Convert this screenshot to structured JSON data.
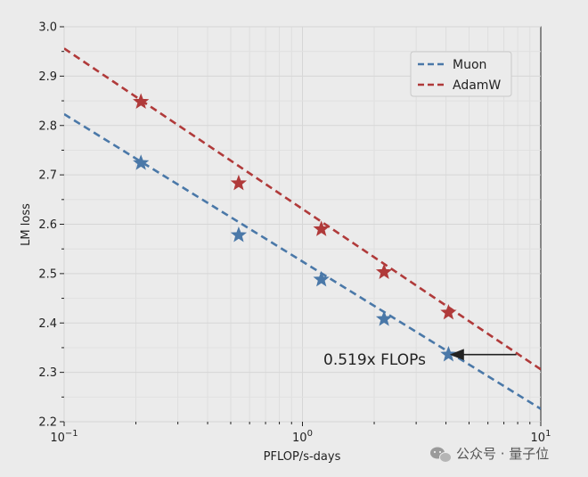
{
  "chart_data": {
    "type": "scatter",
    "xscale": "log",
    "xlabel": "PFLOP/s-days",
    "ylabel": "LM loss",
    "xlim": [
      0.1,
      10
    ],
    "ylim": [
      2.2,
      3.0
    ],
    "x_ticks": [
      {
        "value": 0.1,
        "base": "10",
        "exp": "−1"
      },
      {
        "value": 1,
        "base": "10",
        "exp": "0"
      },
      {
        "value": 10,
        "base": "10",
        "exp": "1"
      }
    ],
    "y_ticks": [
      "2.2",
      "2.3",
      "2.4",
      "2.5",
      "2.6",
      "2.7",
      "2.8",
      "2.9",
      "3.0"
    ],
    "grid": true,
    "legend_position": "top-right",
    "series": [
      {
        "name": "Muon",
        "color": "#4a78a8",
        "marker": "star",
        "points": [
          {
            "x": 0.21,
            "y": 2.724
          },
          {
            "x": 0.54,
            "y": 2.578
          },
          {
            "x": 1.2,
            "y": 2.488
          },
          {
            "x": 2.2,
            "y": 2.408
          },
          {
            "x": 4.1,
            "y": 2.336
          }
        ],
        "fit_line": {
          "x": [
            0.1,
            10
          ],
          "y": [
            2.823,
            2.226
          ]
        }
      },
      {
        "name": "AdamW",
        "color": "#b03a3a",
        "marker": "star",
        "points": [
          {
            "x": 0.21,
            "y": 2.848
          },
          {
            "x": 0.54,
            "y": 2.683
          },
          {
            "x": 1.2,
            "y": 2.59
          },
          {
            "x": 2.2,
            "y": 2.503
          },
          {
            "x": 4.1,
            "y": 2.421
          }
        ],
        "fit_line": {
          "x": [
            0.1,
            10
          ],
          "y": [
            2.956,
            2.306
          ]
        }
      }
    ],
    "annotations": [
      {
        "text": "0.519x FLOPs",
        "arrow_from": {
          "x": 7.9,
          "y": 2.336
        },
        "arrow_to": {
          "x": 4.1,
          "y": 2.336
        }
      }
    ]
  },
  "watermark": {
    "text": "公众号 · 量子位",
    "icon": "wechat-icon"
  }
}
